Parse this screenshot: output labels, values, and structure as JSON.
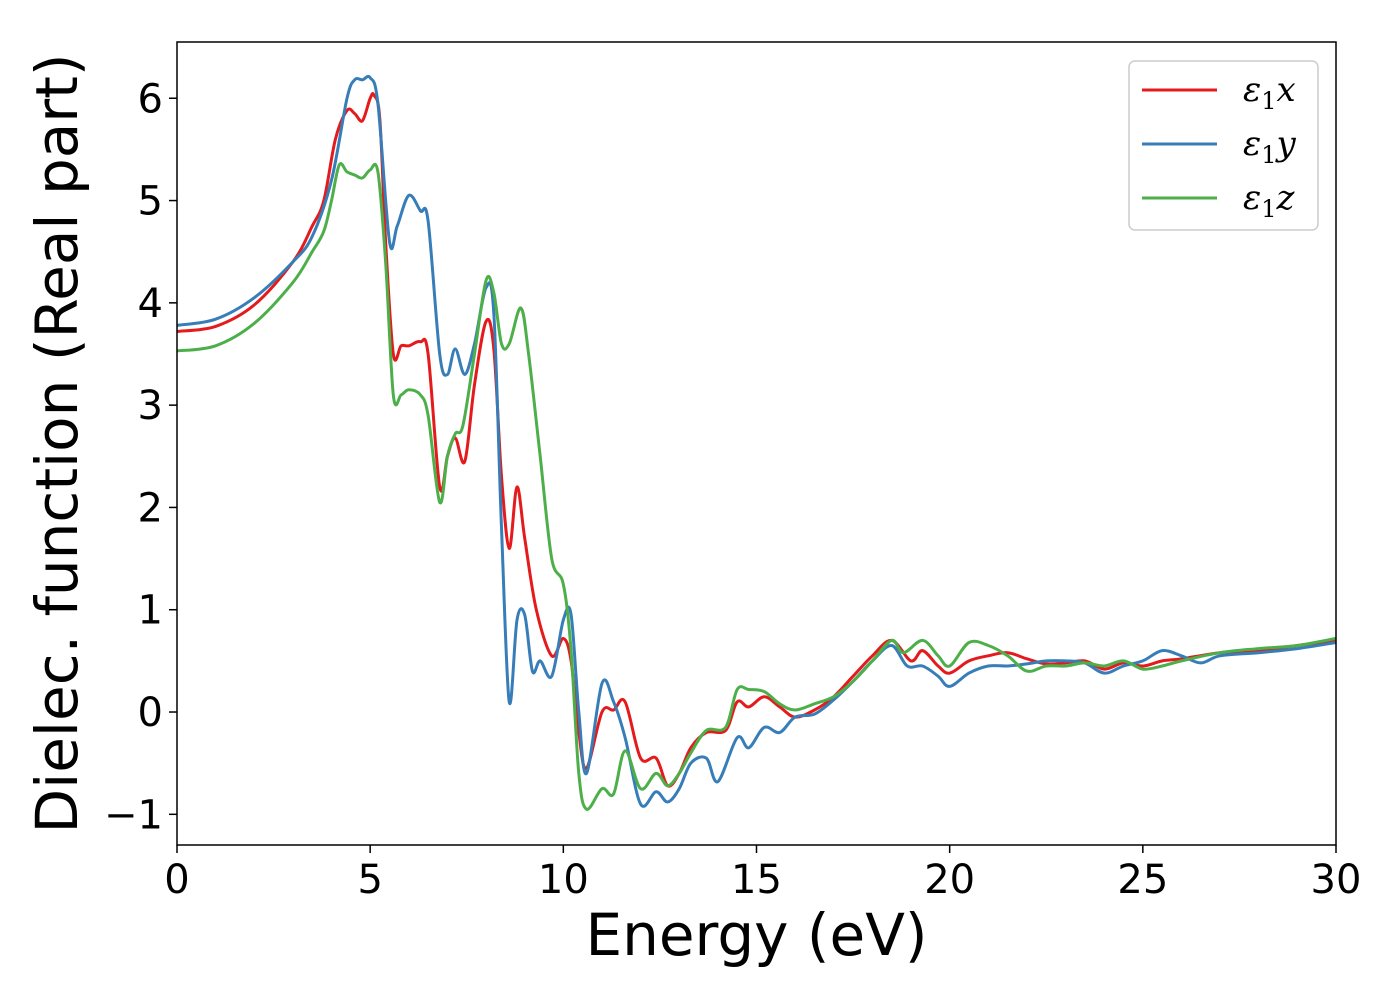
{
  "chart_data": {
    "type": "line",
    "xlabel": "Energy (eV)",
    "ylabel": "Dielec. function (Real part)",
    "xlim": [
      0,
      30
    ],
    "ylim": [
      -1.3,
      6.55
    ],
    "xticks": [
      0,
      5,
      10,
      15,
      20,
      25,
      30
    ],
    "xtick_labels": [
      "0",
      "5",
      "10",
      "15",
      "20",
      "25",
      "30"
    ],
    "yticks": [
      -1,
      0,
      1,
      2,
      3,
      4,
      5,
      6
    ],
    "ytick_labels": [
      "−1",
      "0",
      "1",
      "2",
      "3",
      "4",
      "5",
      "6"
    ],
    "grid": false,
    "legend_position": "top-right",
    "series": [
      {
        "name": "ε1x",
        "color": "#e41a1c",
        "points": [
          [
            0,
            3.72
          ],
          [
            1,
            3.77
          ],
          [
            2,
            3.98
          ],
          [
            3,
            4.4
          ],
          [
            3.5,
            4.75
          ],
          [
            3.8,
            5.0
          ],
          [
            4.1,
            5.6
          ],
          [
            4.4,
            5.88
          ],
          [
            4.6,
            5.85
          ],
          [
            4.8,
            5.78
          ],
          [
            5.0,
            6.0
          ],
          [
            5.1,
            6.03
          ],
          [
            5.25,
            5.8
          ],
          [
            5.4,
            4.6
          ],
          [
            5.6,
            3.5
          ],
          [
            5.8,
            3.58
          ],
          [
            6.0,
            3.58
          ],
          [
            6.3,
            3.62
          ],
          [
            6.5,
            3.5
          ],
          [
            6.8,
            2.2
          ],
          [
            7.0,
            2.5
          ],
          [
            7.2,
            2.68
          ],
          [
            7.45,
            2.45
          ],
          [
            7.7,
            3.2
          ],
          [
            8.0,
            3.82
          ],
          [
            8.2,
            3.55
          ],
          [
            8.4,
            2.3
          ],
          [
            8.6,
            1.6
          ],
          [
            8.8,
            2.2
          ],
          [
            9.0,
            1.7
          ],
          [
            9.3,
            1.0
          ],
          [
            9.7,
            0.55
          ],
          [
            10.0,
            0.72
          ],
          [
            10.2,
            0.5
          ],
          [
            10.4,
            -0.2
          ],
          [
            10.6,
            -0.55
          ],
          [
            11.0,
            0.0
          ],
          [
            11.3,
            0.02
          ],
          [
            11.6,
            0.1
          ],
          [
            12.0,
            -0.45
          ],
          [
            12.4,
            -0.45
          ],
          [
            12.7,
            -0.72
          ],
          [
            13.0,
            -0.6
          ],
          [
            13.3,
            -0.35
          ],
          [
            13.7,
            -0.2
          ],
          [
            14.2,
            -0.18
          ],
          [
            14.5,
            0.1
          ],
          [
            14.8,
            0.05
          ],
          [
            15.2,
            0.15
          ],
          [
            15.6,
            0.05
          ],
          [
            16.0,
            -0.05
          ],
          [
            16.5,
            0.02
          ],
          [
            17.0,
            0.15
          ],
          [
            17.5,
            0.35
          ],
          [
            18.0,
            0.55
          ],
          [
            18.5,
            0.7
          ],
          [
            19.0,
            0.5
          ],
          [
            19.3,
            0.6
          ],
          [
            19.7,
            0.45
          ],
          [
            20.0,
            0.38
          ],
          [
            20.5,
            0.5
          ],
          [
            21.0,
            0.55
          ],
          [
            21.5,
            0.58
          ],
          [
            22.0,
            0.52
          ],
          [
            22.5,
            0.47
          ],
          [
            23.0,
            0.48
          ],
          [
            23.5,
            0.5
          ],
          [
            24.0,
            0.42
          ],
          [
            24.5,
            0.48
          ],
          [
            25.0,
            0.45
          ],
          [
            25.5,
            0.5
          ],
          [
            26.0,
            0.52
          ],
          [
            27.0,
            0.58
          ],
          [
            28.0,
            0.6
          ],
          [
            29.0,
            0.65
          ],
          [
            30.0,
            0.7
          ]
        ]
      },
      {
        "name": "ε1y",
        "color": "#377eb8",
        "points": [
          [
            0,
            3.78
          ],
          [
            1,
            3.84
          ],
          [
            2,
            4.05
          ],
          [
            3,
            4.4
          ],
          [
            3.5,
            4.65
          ],
          [
            4.0,
            5.2
          ],
          [
            4.4,
            6.0
          ],
          [
            4.6,
            6.18
          ],
          [
            4.8,
            6.18
          ],
          [
            5.0,
            6.2
          ],
          [
            5.2,
            5.95
          ],
          [
            5.5,
            4.6
          ],
          [
            5.7,
            4.75
          ],
          [
            6.0,
            5.05
          ],
          [
            6.3,
            4.9
          ],
          [
            6.5,
            4.8
          ],
          [
            6.8,
            3.5
          ],
          [
            7.0,
            3.3
          ],
          [
            7.2,
            3.55
          ],
          [
            7.45,
            3.3
          ],
          [
            7.7,
            3.6
          ],
          [
            8.0,
            4.15
          ],
          [
            8.2,
            3.9
          ],
          [
            8.4,
            1.8
          ],
          [
            8.6,
            0.1
          ],
          [
            8.8,
            0.9
          ],
          [
            9.0,
            0.95
          ],
          [
            9.2,
            0.4
          ],
          [
            9.4,
            0.5
          ],
          [
            9.7,
            0.35
          ],
          [
            10.0,
            0.9
          ],
          [
            10.2,
            0.95
          ],
          [
            10.4,
            0.0
          ],
          [
            10.6,
            -0.6
          ],
          [
            11.0,
            0.28
          ],
          [
            11.3,
            0.1
          ],
          [
            11.6,
            -0.25
          ],
          [
            12.0,
            -0.9
          ],
          [
            12.4,
            -0.78
          ],
          [
            12.7,
            -0.88
          ],
          [
            13.0,
            -0.75
          ],
          [
            13.3,
            -0.5
          ],
          [
            13.7,
            -0.45
          ],
          [
            14.0,
            -0.68
          ],
          [
            14.5,
            -0.25
          ],
          [
            14.8,
            -0.35
          ],
          [
            15.2,
            -0.15
          ],
          [
            15.6,
            -0.2
          ],
          [
            16.0,
            -0.05
          ],
          [
            16.5,
            -0.02
          ],
          [
            17.0,
            0.12
          ],
          [
            17.5,
            0.3
          ],
          [
            18.0,
            0.5
          ],
          [
            18.5,
            0.65
          ],
          [
            18.9,
            0.45
          ],
          [
            19.3,
            0.45
          ],
          [
            19.7,
            0.35
          ],
          [
            20.0,
            0.25
          ],
          [
            20.5,
            0.38
          ],
          [
            21.0,
            0.45
          ],
          [
            21.5,
            0.45
          ],
          [
            22.0,
            0.47
          ],
          [
            22.5,
            0.5
          ],
          [
            23.0,
            0.5
          ],
          [
            23.5,
            0.48
          ],
          [
            24.0,
            0.38
          ],
          [
            24.5,
            0.45
          ],
          [
            25.0,
            0.5
          ],
          [
            25.5,
            0.6
          ],
          [
            26.0,
            0.55
          ],
          [
            26.5,
            0.48
          ],
          [
            27.0,
            0.55
          ],
          [
            28.0,
            0.58
          ],
          [
            29.0,
            0.62
          ],
          [
            30.0,
            0.68
          ]
        ]
      },
      {
        "name": "ε1z",
        "color": "#4daf4a",
        "points": [
          [
            0,
            3.53
          ],
          [
            1,
            3.58
          ],
          [
            2,
            3.8
          ],
          [
            3,
            4.2
          ],
          [
            3.5,
            4.5
          ],
          [
            3.8,
            4.7
          ],
          [
            4.0,
            5.0
          ],
          [
            4.2,
            5.35
          ],
          [
            4.4,
            5.28
          ],
          [
            4.6,
            5.25
          ],
          [
            4.8,
            5.22
          ],
          [
            5.0,
            5.3
          ],
          [
            5.2,
            5.28
          ],
          [
            5.4,
            4.4
          ],
          [
            5.6,
            3.1
          ],
          [
            5.8,
            3.1
          ],
          [
            6.0,
            3.15
          ],
          [
            6.3,
            3.1
          ],
          [
            6.5,
            2.9
          ],
          [
            6.8,
            2.05
          ],
          [
            7.0,
            2.5
          ],
          [
            7.2,
            2.72
          ],
          [
            7.4,
            2.8
          ],
          [
            7.7,
            3.5
          ],
          [
            8.0,
            4.22
          ],
          [
            8.2,
            4.1
          ],
          [
            8.4,
            3.6
          ],
          [
            8.6,
            3.6
          ],
          [
            8.9,
            3.95
          ],
          [
            9.1,
            3.5
          ],
          [
            9.4,
            2.5
          ],
          [
            9.7,
            1.5
          ],
          [
            10.0,
            1.25
          ],
          [
            10.2,
            0.6
          ],
          [
            10.4,
            -0.6
          ],
          [
            10.6,
            -0.95
          ],
          [
            11.0,
            -0.75
          ],
          [
            11.3,
            -0.8
          ],
          [
            11.6,
            -0.38
          ],
          [
            12.0,
            -0.75
          ],
          [
            12.4,
            -0.6
          ],
          [
            12.7,
            -0.72
          ],
          [
            13.0,
            -0.6
          ],
          [
            13.3,
            -0.4
          ],
          [
            13.7,
            -0.18
          ],
          [
            14.2,
            -0.15
          ],
          [
            14.5,
            0.22
          ],
          [
            14.8,
            0.22
          ],
          [
            15.2,
            0.2
          ],
          [
            15.6,
            0.08
          ],
          [
            16.0,
            0.02
          ],
          [
            16.5,
            0.08
          ],
          [
            17.0,
            0.15
          ],
          [
            17.5,
            0.3
          ],
          [
            18.0,
            0.5
          ],
          [
            18.5,
            0.7
          ],
          [
            18.8,
            0.58
          ],
          [
            19.3,
            0.7
          ],
          [
            19.7,
            0.55
          ],
          [
            20.0,
            0.45
          ],
          [
            20.5,
            0.68
          ],
          [
            21.0,
            0.65
          ],
          [
            21.5,
            0.55
          ],
          [
            22.0,
            0.4
          ],
          [
            22.5,
            0.45
          ],
          [
            23.0,
            0.45
          ],
          [
            23.5,
            0.48
          ],
          [
            24.0,
            0.45
          ],
          [
            24.5,
            0.5
          ],
          [
            25.0,
            0.42
          ],
          [
            25.5,
            0.45
          ],
          [
            26.0,
            0.5
          ],
          [
            27.0,
            0.58
          ],
          [
            28.0,
            0.62
          ],
          [
            29.0,
            0.65
          ],
          [
            30.0,
            0.72
          ]
        ]
      }
    ]
  }
}
